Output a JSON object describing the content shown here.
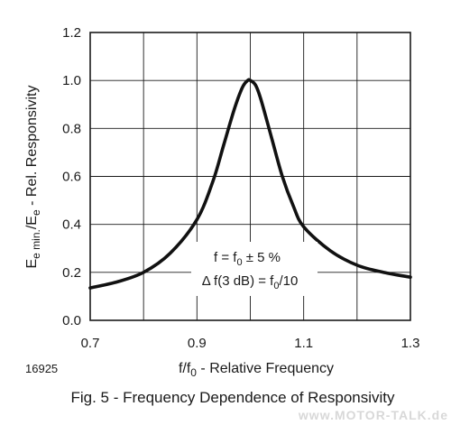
{
  "chart_data": {
    "type": "line",
    "xlim": [
      0.7,
      1.3
    ],
    "ylim": [
      0.0,
      1.2
    ],
    "x_ticks": [
      "0.7",
      "0.9",
      "1.1",
      "1.3"
    ],
    "y_ticks": [
      "0.0",
      "0.2",
      "0.4",
      "0.6",
      "0.8",
      "1.0",
      "1.2"
    ],
    "grid": true,
    "series": [
      {
        "x": [
          0.7,
          0.75,
          0.8,
          0.85,
          0.9,
          0.93,
          0.95,
          0.97,
          0.985,
          0.995,
          1.0,
          1.01,
          1.02,
          1.04,
          1.06,
          1.08,
          1.1,
          1.15,
          1.2,
          1.25,
          1.3
        ],
        "y": [
          0.135,
          0.16,
          0.2,
          0.28,
          0.42,
          0.58,
          0.73,
          0.88,
          0.97,
          1.0,
          1.0,
          0.98,
          0.92,
          0.76,
          0.6,
          0.48,
          0.39,
          0.29,
          0.23,
          0.2,
          0.18
        ]
      }
    ]
  },
  "labels": {
    "xlabel_main": "f/f",
    "xlabel_sub": "0",
    "xlabel_rest": " - Relative Frequency",
    "ylabel_e1": "E",
    "ylabel_sub1": "e min.",
    "ylabel_slash": "/E",
    "ylabel_sub2": "e",
    "ylabel_rest": " - Rel. Responsivity",
    "figure_number": "16925",
    "caption": "Fig. 5 - Frequency Dependence of Responsivity",
    "annotation_line1_a": "f = f",
    "annotation_line1_sub": "0",
    "annotation_line1_b": " ± 5 %",
    "annotation_line2_a": "Δ f(3 dB) = f",
    "annotation_line2_sub": "0",
    "annotation_line2_b": "/10",
    "watermark": "www.MOTOR-TALK.de"
  }
}
